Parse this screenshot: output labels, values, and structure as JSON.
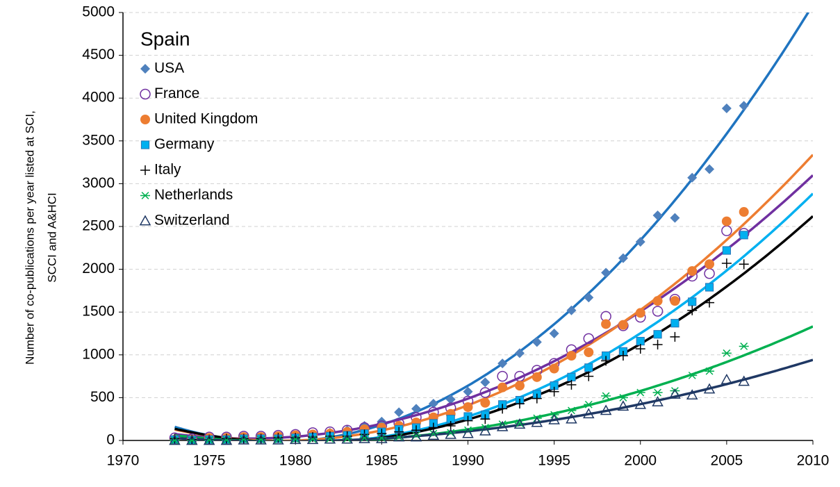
{
  "chart_data": {
    "type": "scatter",
    "y_label": [
      "Number of co-publications per year listed at SCI,",
      "SCCI and A&HCI"
    ],
    "legend_title": "Spain",
    "legend": "upper left",
    "trendline": "poly2",
    "grid": true,
    "xlim": [
      1970,
      2010
    ],
    "xticks": [
      1970,
      1975,
      1980,
      1985,
      1990,
      1995,
      2000,
      2005,
      2010
    ],
    "ylim": [
      0,
      5000
    ],
    "yticks": [
      0,
      500,
      1000,
      1500,
      2000,
      2500,
      3000,
      3500,
      4000,
      4500,
      5000
    ],
    "x": [
      1973,
      1974,
      1975,
      1976,
      1977,
      1978,
      1979,
      1980,
      1981,
      1982,
      1983,
      1984,
      1985,
      1986,
      1987,
      1988,
      1989,
      1990,
      1991,
      1992,
      1993,
      1994,
      1995,
      1996,
      1997,
      1998,
      1999,
      2000,
      2001,
      2002,
      2003,
      2004,
      2005,
      2006
    ],
    "series": [
      {
        "name": "USA",
        "marker": "diamond",
        "color": "#4f81bd",
        "line_color": "#1f74c0",
        "values": [
          20,
          15,
          20,
          30,
          40,
          40,
          50,
          55,
          70,
          90,
          120,
          170,
          220,
          330,
          370,
          430,
          480,
          570,
          680,
          900,
          1020,
          1150,
          1250,
          1520,
          1670,
          1960,
          2130,
          2320,
          2630,
          2600,
          3070,
          3170,
          3880,
          3910
        ]
      },
      {
        "name": "France",
        "marker": "open-circle",
        "color": "#7030a0",
        "line_color": "#7030a0",
        "values": [
          30,
          20,
          40,
          40,
          50,
          50,
          60,
          70,
          90,
          100,
          120,
          150,
          170,
          200,
          270,
          330,
          380,
          460,
          560,
          750,
          750,
          820,
          900,
          1060,
          1190,
          1450,
          1340,
          1440,
          1510,
          1650,
          1920,
          1950,
          2450,
          2420
        ]
      },
      {
        "name": "United Kingdom",
        "marker": "circle",
        "color": "#ed7d31",
        "line_color": "#ed7d31",
        "values": [
          10,
          10,
          30,
          30,
          40,
          40,
          50,
          60,
          70,
          80,
          100,
          130,
          150,
          170,
          210,
          270,
          310,
          390,
          440,
          620,
          640,
          740,
          840,
          990,
          1030,
          1360,
          1350,
          1490,
          1630,
          1630,
          1980,
          2060,
          2560,
          2670
        ]
      },
      {
        "name": "Germany",
        "marker": "square",
        "color": "#00b0f0",
        "line_color": "#00b0f0",
        "values": [
          10,
          5,
          10,
          10,
          20,
          20,
          20,
          30,
          40,
          50,
          60,
          80,
          100,
          130,
          150,
          200,
          250,
          280,
          300,
          420,
          470,
          540,
          640,
          740,
          850,
          990,
          1040,
          1160,
          1240,
          1370,
          1620,
          1790,
          2220,
          2400
        ]
      },
      {
        "name": "Italy",
        "marker": "plus",
        "color": "#000000",
        "line_color": "#000000",
        "values": [
          20,
          10,
          10,
          20,
          20,
          20,
          30,
          30,
          40,
          50,
          50,
          70,
          80,
          100,
          120,
          150,
          170,
          230,
          250,
          370,
          430,
          490,
          570,
          650,
          750,
          930,
          990,
          1070,
          1120,
          1210,
          1520,
          1610,
          2070,
          2060
        ]
      },
      {
        "name": "Netherlands",
        "marker": "star",
        "color": "#00b050",
        "line_color": "#00b050",
        "values": [
          0,
          0,
          5,
          5,
          10,
          10,
          10,
          15,
          15,
          20,
          20,
          30,
          30,
          40,
          60,
          80,
          90,
          120,
          150,
          190,
          200,
          260,
          300,
          350,
          420,
          520,
          500,
          560,
          560,
          580,
          760,
          810,
          1020,
          1100
        ]
      },
      {
        "name": "Switzerland",
        "marker": "open-triangle",
        "color": "#1f3864",
        "line_color": "#1f3864",
        "values": [
          0,
          0,
          0,
          0,
          5,
          5,
          5,
          10,
          10,
          15,
          15,
          20,
          20,
          40,
          40,
          60,
          70,
          80,
          110,
          160,
          190,
          210,
          240,
          250,
          310,
          350,
          400,
          420,
          450,
          540,
          530,
          600,
          710,
          690
        ]
      }
    ]
  }
}
